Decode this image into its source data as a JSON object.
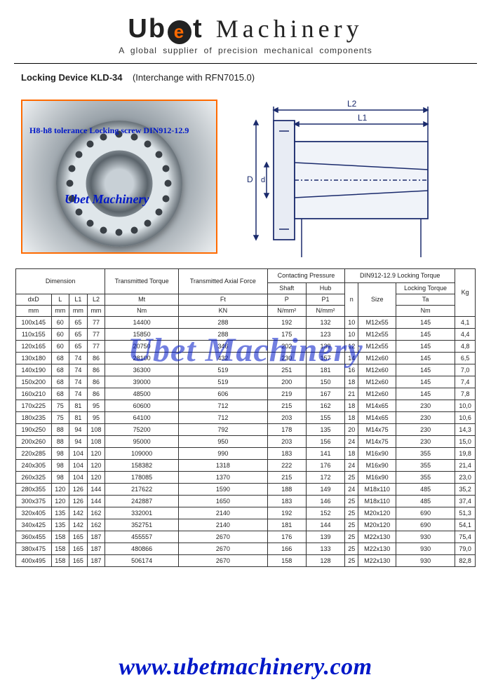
{
  "header": {
    "brand_left": "Ub",
    "brand_e": "e",
    "brand_right": "t",
    "brand_word2": "Machinery",
    "tagline": "A global supplier of precision mechanical components"
  },
  "subtitle": {
    "bold": "Locking Device KLD-34",
    "note": "(Interchange with RFN7015.0)"
  },
  "photo": {
    "line1": "H8-h8 tolerance Locking screw DIN912-12.9",
    "line2": "Ubet Machinery"
  },
  "drawing": {
    "L2": "L2",
    "L1": "L1",
    "D": "D",
    "d": "d"
  },
  "table": {
    "group_headers": {
      "dimension": "Dimension",
      "tt": "Transmitted Torque",
      "taf": "Transmitted Axial Force",
      "cp": "Contacting Pressure",
      "lt": "DIN912-12.9 Locking Torque",
      "kg": "Kg"
    },
    "sub_headers": {
      "shaft": "Shaft",
      "hub": "Hub",
      "n": "n",
      "size": "Size",
      "ltq": "Locking Torque"
    },
    "col_symbols": {
      "dxD": "dxD",
      "L": "L",
      "L1": "L1",
      "L2": "L2",
      "Mt": "Mt",
      "Ft": "Ft",
      "P": "P",
      "P1": "P1",
      "Ta": "Ta"
    },
    "units": {
      "mm": "mm",
      "Nm": "Nm",
      "KN": "KN",
      "Nmm2": "N/mm²"
    },
    "rows": [
      [
        "100x145",
        "60",
        "65",
        "77",
        "14400",
        "288",
        "192",
        "132",
        "10",
        "M12x55",
        "145",
        "4,1"
      ],
      [
        "110x155",
        "60",
        "65",
        "77",
        "15850",
        "288",
        "175",
        "123",
        "10",
        "M12x55",
        "145",
        "4,4"
      ],
      [
        "120x165",
        "60",
        "65",
        "77",
        "20750",
        "346",
        "202",
        "139",
        "12",
        "M12x55",
        "145",
        "4,8"
      ],
      [
        "130x180",
        "68",
        "74",
        "86",
        "28100",
        "432",
        "230",
        "157",
        "14",
        "M12x60",
        "145",
        "6,5"
      ],
      [
        "140x190",
        "68",
        "74",
        "86",
        "36300",
        "519",
        "251",
        "181",
        "16",
        "M12x60",
        "145",
        "7,0"
      ],
      [
        "150x200",
        "68",
        "74",
        "86",
        "39000",
        "519",
        "200",
        "150",
        "18",
        "M12x60",
        "145",
        "7,4"
      ],
      [
        "160x210",
        "68",
        "74",
        "86",
        "48500",
        "606",
        "219",
        "167",
        "21",
        "M12x60",
        "145",
        "7,8"
      ],
      [
        "170x225",
        "75",
        "81",
        "95",
        "60600",
        "712",
        "215",
        "162",
        "18",
        "M14x65",
        "230",
        "10,0"
      ],
      [
        "180x235",
        "75",
        "81",
        "95",
        "64100",
        "712",
        "203",
        "155",
        "18",
        "M14x65",
        "230",
        "10,6"
      ],
      [
        "190x250",
        "88",
        "94",
        "108",
        "75200",
        "792",
        "178",
        "135",
        "20",
        "M14x75",
        "230",
        "14,3"
      ],
      [
        "200x260",
        "88",
        "94",
        "108",
        "95000",
        "950",
        "203",
        "156",
        "24",
        "M14x75",
        "230",
        "15,0"
      ],
      [
        "220x285",
        "98",
        "104",
        "120",
        "109000",
        "990",
        "183",
        "141",
        "18",
        "M16x90",
        "355",
        "19,8"
      ],
      [
        "240x305",
        "98",
        "104",
        "120",
        "158382",
        "1318",
        "222",
        "176",
        "24",
        "M16x90",
        "355",
        "21,4"
      ],
      [
        "260x325",
        "98",
        "104",
        "120",
        "178085",
        "1370",
        "215",
        "172",
        "25",
        "M16x90",
        "355",
        "23,0"
      ],
      [
        "280x355",
        "120",
        "126",
        "144",
        "217622",
        "1590",
        "188",
        "149",
        "24",
        "M18x110",
        "485",
        "35,2"
      ],
      [
        "300x375",
        "120",
        "126",
        "144",
        "242887",
        "1650",
        "183",
        "146",
        "25",
        "M18x110",
        "485",
        "37,4"
      ],
      [
        "320x405",
        "135",
        "142",
        "162",
        "332001",
        "2140",
        "192",
        "152",
        "25",
        "M20x120",
        "690",
        "51,3"
      ],
      [
        "340x425",
        "135",
        "142",
        "162",
        "352751",
        "2140",
        "181",
        "144",
        "25",
        "M20x120",
        "690",
        "54,1"
      ],
      [
        "360x455",
        "158",
        "165",
        "187",
        "455557",
        "2670",
        "176",
        "139",
        "25",
        "M22x130",
        "930",
        "75,4"
      ],
      [
        "380x475",
        "158",
        "165",
        "187",
        "480866",
        "2670",
        "166",
        "133",
        "25",
        "M22x130",
        "930",
        "79,0"
      ],
      [
        "400x495",
        "158",
        "165",
        "187",
        "506174",
        "2670",
        "158",
        "128",
        "25",
        "M22x130",
        "930",
        "82,8"
      ]
    ]
  },
  "watermark": "Ubet Machinery",
  "footer": "www.ubetmachinery.com",
  "style": {
    "accent": "#ff6a00",
    "link_blue": "#0018c8",
    "border": "#333333",
    "bg": "#ffffff"
  }
}
